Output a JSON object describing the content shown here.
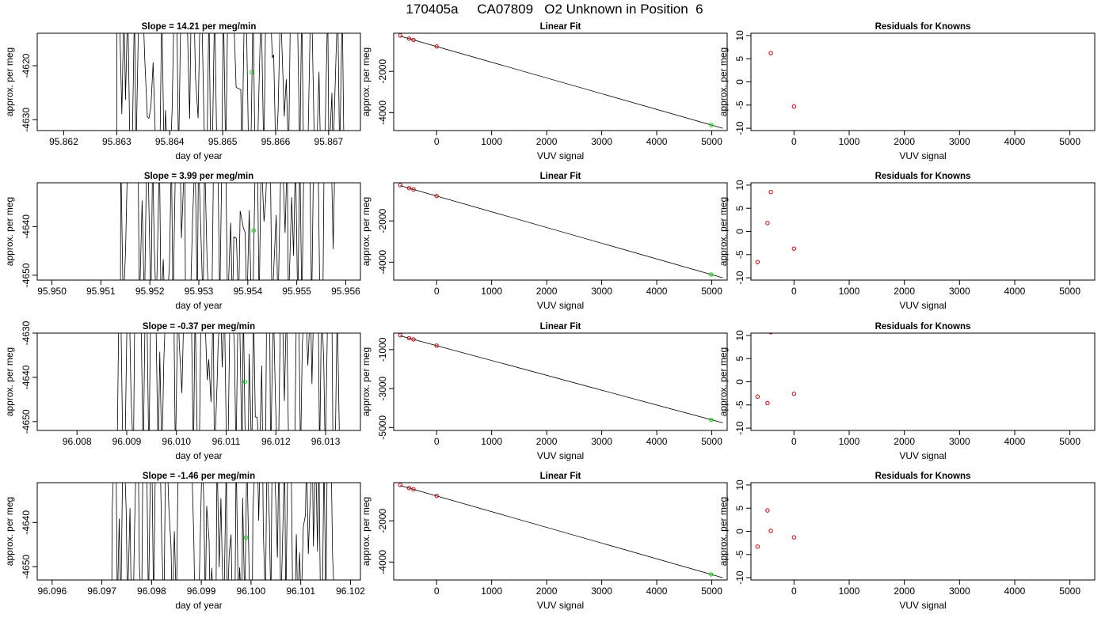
{
  "figure": {
    "title": "170405a     CA07809   O2 Unknown in Position  6"
  },
  "chart_data": [
    {
      "row": 0,
      "kind": "timeseries",
      "type": "line",
      "title": "Slope =  14.21  per meg/min",
      "xlabel": "day of year",
      "ylabel": "approx. per meg",
      "xlim": [
        95.8615,
        95.8676
      ],
      "ylim": [
        -4632,
        -4614
      ],
      "xticks": [
        95.862,
        95.863,
        95.864,
        95.865,
        95.866,
        95.867
      ],
      "xtick_labels": [
        "95.862",
        "95.863",
        "95.864",
        "95.865",
        "95.866",
        "95.867"
      ],
      "yticks": [
        -4630,
        -4620
      ],
      "ytick_labels": [
        "-4630",
        "-4620"
      ],
      "signal_start": 95.863,
      "signal_end": 95.8674,
      "n_points": 110,
      "seed": 11,
      "point": {
        "x": 95.86555,
        "y": -4621.2
      }
    },
    {
      "row": 0,
      "kind": "fit",
      "type": "scatter",
      "title": "Linear Fit",
      "xlabel": "VUV signal",
      "ylabel": "approx. per meg",
      "xlim": [
        -780,
        5280
      ],
      "ylim": [
        -4870,
        -150
      ],
      "xticks": [
        0,
        1000,
        2000,
        3000,
        4000,
        5000
      ],
      "xtick_labels": [
        "0",
        "1000",
        "2000",
        "3000",
        "4000",
        "5000"
      ],
      "yticks": [
        -4000,
        -2000
      ],
      "ytick_labels": [
        "-4000",
        "-2000"
      ],
      "line": [
        [
          -660,
          -290
        ],
        [
          5200,
          -4760
        ]
      ],
      "knowns": {
        "x": [
          -660,
          -500,
          -420,
          0
        ],
        "y": [
          -260,
          -412,
          -474,
          -792
        ]
      },
      "unknown": {
        "x": 4990,
        "y": -4598
      }
    },
    {
      "row": 0,
      "kind": "residuals",
      "type": "scatter",
      "title": "Residuals for Knowns",
      "xlabel": "VUV signal",
      "ylabel": "approx. per meg",
      "xlim": [
        -780,
        5450
      ],
      "ylim": [
        -10.5,
        10.5
      ],
      "xticks": [
        0,
        1000,
        2000,
        3000,
        4000,
        5000
      ],
      "xtick_labels": [
        "0",
        "1000",
        "2000",
        "3000",
        "4000",
        "5000"
      ],
      "yticks": [
        -10,
        -5,
        0,
        5,
        10
      ],
      "ytick_labels": [
        "-10",
        "-5",
        "0",
        "5",
        "10"
      ],
      "points": {
        "x": [
          -420,
          0
        ],
        "y": [
          6.2,
          -5.3
        ]
      }
    },
    {
      "row": 1,
      "kind": "timeseries",
      "type": "line",
      "title": "Slope =  3.99  per meg/min",
      "xlabel": "day of year",
      "ylabel": "approx. per meg",
      "xlim": [
        95.9497,
        95.9563
      ],
      "ylim": [
        -4651,
        -4631
      ],
      "xticks": [
        95.95,
        95.951,
        95.952,
        95.953,
        95.954,
        95.955,
        95.956
      ],
      "xtick_labels": [
        "95.950",
        "95.951",
        "95.952",
        "95.953",
        "95.954",
        "95.955",
        "95.956"
      ],
      "yticks": [
        -4650,
        -4640
      ],
      "ytick_labels": [
        "-4650",
        "-4640"
      ],
      "signal_start": 95.9514,
      "signal_end": 95.9559,
      "n_points": 105,
      "seed": 23,
      "point": {
        "x": 95.95412,
        "y": -4640.8
      }
    },
    {
      "row": 1,
      "kind": "fit",
      "type": "scatter",
      "title": "Linear Fit",
      "xlabel": "VUV signal",
      "ylabel": "approx. per meg",
      "xlim": [
        -780,
        5280
      ],
      "ylim": [
        -4870,
        -150
      ],
      "xticks": [
        0,
        1000,
        2000,
        3000,
        4000,
        5000
      ],
      "xtick_labels": [
        "0",
        "1000",
        "2000",
        "3000",
        "4000",
        "5000"
      ],
      "yticks": [
        -4000,
        -2000
      ],
      "ytick_labels": [
        "-4000",
        "-2000"
      ],
      "line": [
        [
          -660,
          -290
        ],
        [
          5200,
          -4760
        ]
      ],
      "knowns": {
        "x": [
          -660,
          -500,
          -420,
          0
        ],
        "y": [
          -260,
          -412,
          -474,
          -792
        ]
      },
      "unknown": {
        "x": 4990,
        "y": -4598
      }
    },
    {
      "row": 1,
      "kind": "residuals",
      "type": "scatter",
      "title": "Residuals for Knowns",
      "xlabel": "VUV signal",
      "ylabel": "approx. per meg",
      "xlim": [
        -780,
        5450
      ],
      "ylim": [
        -10.5,
        10.5
      ],
      "xticks": [
        0,
        1000,
        2000,
        3000,
        4000,
        5000
      ],
      "xtick_labels": [
        "0",
        "1000",
        "2000",
        "3000",
        "4000",
        "5000"
      ],
      "yticks": [
        -10,
        -5,
        0,
        5,
        10
      ],
      "ytick_labels": [
        "-10",
        "-5",
        "0",
        "5",
        "10"
      ],
      "points": {
        "x": [
          -660,
          -480,
          -420,
          0
        ],
        "y": [
          -6.6,
          1.8,
          8.5,
          -3.7
        ]
      }
    },
    {
      "row": 2,
      "kind": "timeseries",
      "type": "line",
      "title": "Slope =  -0.37  per meg/min",
      "xlabel": "day of year",
      "ylabel": "approx. per meg",
      "xlim": [
        96.0072,
        96.0137
      ],
      "ylim": [
        -4652,
        -4630
      ],
      "xticks": [
        96.008,
        96.009,
        96.01,
        96.011,
        96.012,
        96.013
      ],
      "xtick_labels": [
        "96.008",
        "96.009",
        "96.010",
        "96.011",
        "96.012",
        "96.013"
      ],
      "yticks": [
        -4650,
        -4640,
        -4630
      ],
      "ytick_labels": [
        "-4650",
        "-4640",
        "-4630"
      ],
      "signal_start": 96.0088,
      "signal_end": 96.0133,
      "n_points": 115,
      "seed": 37,
      "point": {
        "x": 96.01138,
        "y": -4641.0
      }
    },
    {
      "row": 2,
      "kind": "fit",
      "type": "scatter",
      "title": "Linear Fit",
      "xlabel": "VUV signal",
      "ylabel": "approx. per meg",
      "xlim": [
        -780,
        5280
      ],
      "ylim": [
        -5150,
        -150
      ],
      "xticks": [
        0,
        1000,
        2000,
        3000,
        4000,
        5000
      ],
      "xtick_labels": [
        "0",
        "1000",
        "2000",
        "3000",
        "4000",
        "5000"
      ],
      "yticks": [
        -5000,
        -3000,
        -1000
      ],
      "ytick_labels": [
        "-5000",
        "-3000",
        "-1000"
      ],
      "line": [
        [
          -660,
          -290
        ],
        [
          5200,
          -4760
        ]
      ],
      "knowns": {
        "x": [
          -660,
          -500,
          -420,
          0
        ],
        "y": [
          -260,
          -412,
          -474,
          -792
        ]
      },
      "unknown": {
        "x": 4990,
        "y": -4598
      }
    },
    {
      "row": 2,
      "kind": "residuals",
      "type": "scatter",
      "title": "Residuals for Knowns",
      "xlabel": "VUV signal",
      "ylabel": "approx. per meg",
      "xlim": [
        -780,
        5450
      ],
      "ylim": [
        -10.5,
        10.5
      ],
      "xticks": [
        0,
        1000,
        2000,
        3000,
        4000,
        5000
      ],
      "xtick_labels": [
        "0",
        "1000",
        "2000",
        "3000",
        "4000",
        "5000"
      ],
      "yticks": [
        -10,
        -5,
        0,
        5,
        10
      ],
      "ytick_labels": [
        "-10",
        "-5",
        "0",
        "5",
        "10"
      ],
      "points": {
        "x": [
          -660,
          -480,
          -420,
          0
        ],
        "y": [
          -3.2,
          -4.6,
          10.7,
          -2.6
        ]
      }
    },
    {
      "row": 3,
      "kind": "timeseries",
      "type": "line",
      "title": "Slope =  -1.46  per meg/min",
      "xlabel": "day of year",
      "ylabel": "approx. per meg",
      "xlim": [
        96.0957,
        96.1022
      ],
      "ylim": [
        -4653,
        -4631
      ],
      "xticks": [
        96.096,
        96.097,
        96.098,
        96.099,
        96.1,
        96.101,
        96.102
      ],
      "xtick_labels": [
        "96.096",
        "96.097",
        "96.098",
        "96.099",
        "96.100",
        "96.101",
        "96.102"
      ],
      "yticks": [
        -4650,
        -4640
      ],
      "ytick_labels": [
        "-4650",
        "-4640"
      ],
      "signal_start": 96.0972,
      "signal_end": 96.1017,
      "n_points": 130,
      "seed": 51,
      "point": {
        "x": 96.0999,
        "y": -4643.4
      }
    },
    {
      "row": 3,
      "kind": "fit",
      "type": "scatter",
      "title": "Linear Fit",
      "xlabel": "VUV signal",
      "ylabel": "approx. per meg",
      "xlim": [
        -780,
        5280
      ],
      "ylim": [
        -4870,
        -150
      ],
      "xticks": [
        0,
        1000,
        2000,
        3000,
        4000,
        5000
      ],
      "xtick_labels": [
        "0",
        "1000",
        "2000",
        "3000",
        "4000",
        "5000"
      ],
      "yticks": [
        -4000,
        -2000
      ],
      "ytick_labels": [
        "-4000",
        "-2000"
      ],
      "line": [
        [
          -660,
          -290
        ],
        [
          5200,
          -4760
        ]
      ],
      "knowns": {
        "x": [
          -660,
          -500,
          -420,
          0
        ],
        "y": [
          -260,
          -412,
          -474,
          -792
        ]
      },
      "unknown": {
        "x": 4990,
        "y": -4598
      }
    },
    {
      "row": 3,
      "kind": "residuals",
      "type": "scatter",
      "title": "Residuals for Knowns",
      "xlabel": "VUV signal",
      "ylabel": "approx. per meg",
      "xlim": [
        -780,
        5450
      ],
      "ylim": [
        -10.5,
        10.5
      ],
      "xticks": [
        0,
        1000,
        2000,
        3000,
        4000,
        5000
      ],
      "xtick_labels": [
        "0",
        "1000",
        "2000",
        "3000",
        "4000",
        "5000"
      ],
      "yticks": [
        -10,
        -5,
        0,
        5,
        10
      ],
      "ytick_labels": [
        "-10",
        "-5",
        "0",
        "5",
        "10"
      ],
      "points": {
        "x": [
          -660,
          -480,
          -420,
          0
        ],
        "y": [
          -3.3,
          4.5,
          0.1,
          -1.3
        ]
      }
    }
  ],
  "colors": {
    "line": "#000000",
    "known_points": "#cc0000",
    "unknown_point": "#00dd00"
  }
}
